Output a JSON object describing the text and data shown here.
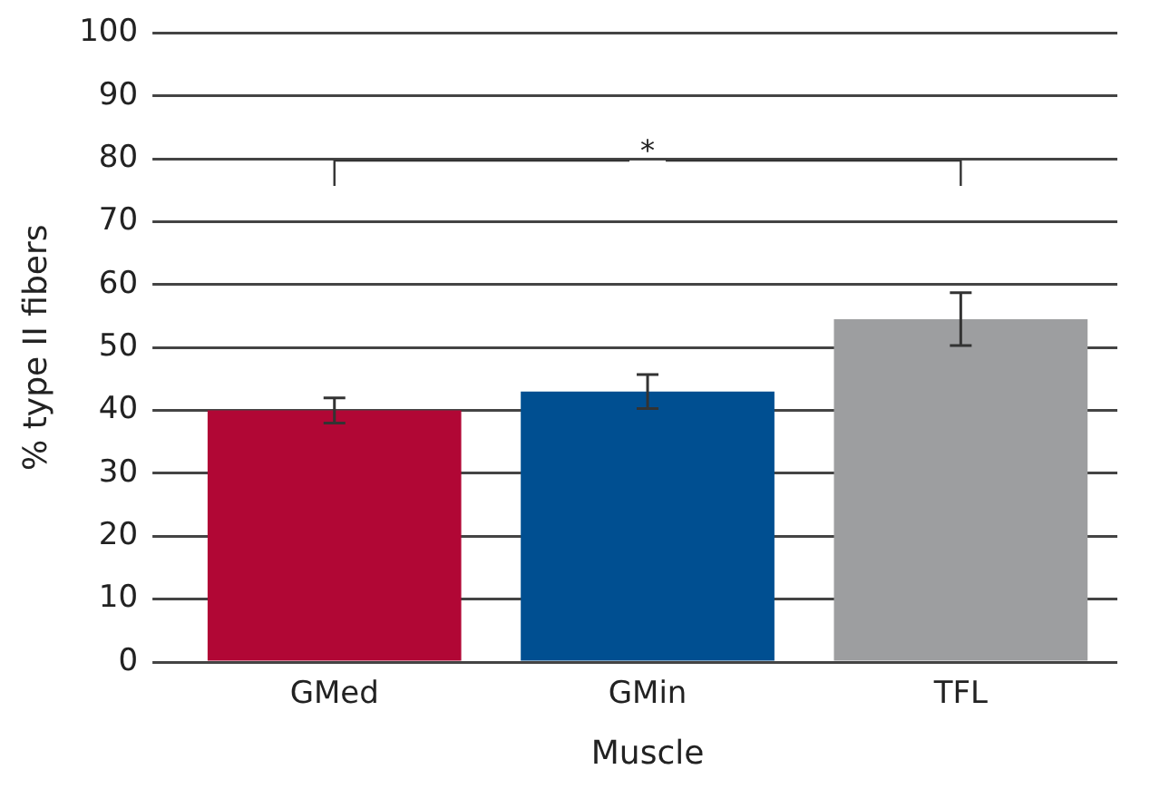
{
  "chart_data": {
    "type": "bar",
    "xlabel": "Muscle",
    "ylabel": "% type II fibers",
    "categories": [
      "GMed",
      "GMin",
      "TFL"
    ],
    "values": [
      40,
      43,
      54.5
    ],
    "colors": [
      "#b10735",
      "#004f91",
      "#9d9ea0"
    ],
    "errors": [
      2,
      2.7,
      4.2
    ],
    "ylim": [
      0,
      100
    ],
    "yticks": [
      0,
      10,
      20,
      30,
      40,
      50,
      60,
      70,
      80,
      90,
      100
    ],
    "grid": "y",
    "legend": false,
    "annotations": [
      "*"
    ]
  }
}
